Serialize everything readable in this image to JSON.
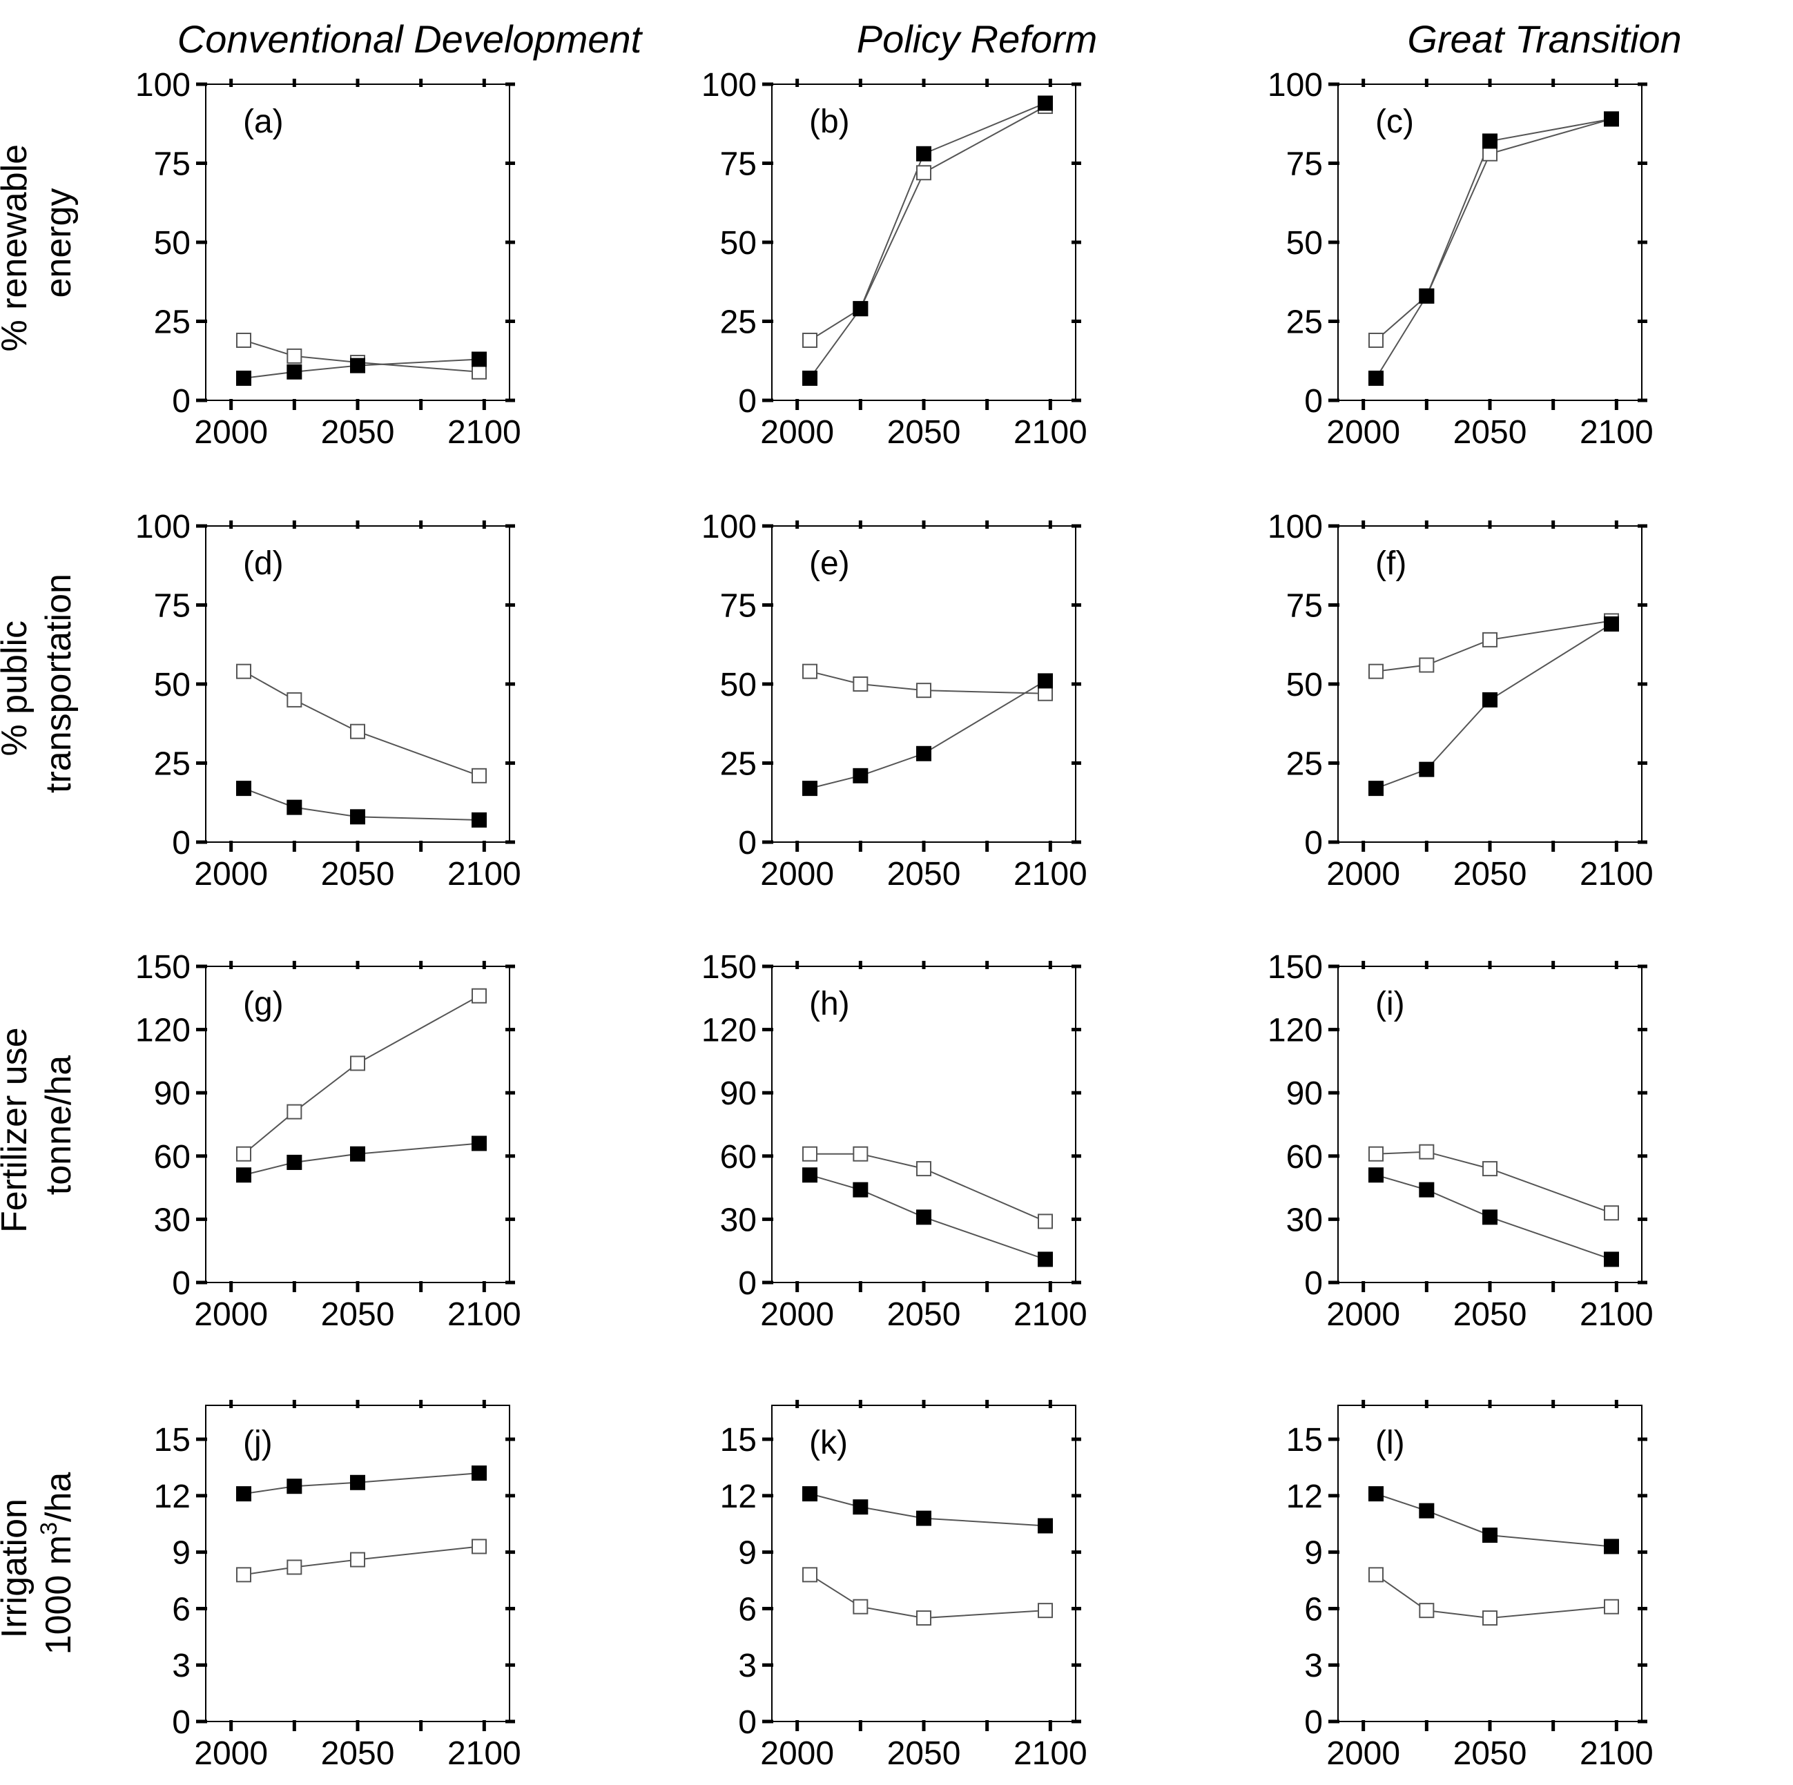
{
  "column_titles": [
    "Conventional Development",
    "Policy Reform",
    "Great Transition"
  ],
  "row_labels": [
    {
      "line1": "% renewable",
      "line2": "energy",
      "sup": ""
    },
    {
      "line1": "% public",
      "line2": "transportation",
      "sup": ""
    },
    {
      "line1": "Fertilizer use",
      "line2": "tonne/ha",
      "sup": ""
    },
    {
      "line1": "Irrigation",
      "line2_pre": "1000 m",
      "sup": "3",
      "line2_post": "/ha"
    }
  ],
  "colors": {
    "line": "#555555",
    "filled": "#000000",
    "open_fill": "#ffffff",
    "axis": "#000000"
  },
  "chart_data": [
    {
      "id": "a",
      "label": "(a)",
      "type": "line",
      "row": 0,
      "col": 0,
      "xlim": [
        1990,
        2110
      ],
      "xticks": [
        2000,
        2050,
        2100
      ],
      "ylim": [
        0,
        100
      ],
      "yticks": [
        0,
        25,
        50,
        75,
        100
      ],
      "series": [
        {
          "name": "filled",
          "x": [
            2005,
            2025,
            2050,
            2098
          ],
          "y": [
            7,
            9,
            11,
            13
          ]
        },
        {
          "name": "open",
          "x": [
            2005,
            2025,
            2050,
            2098
          ],
          "y": [
            19,
            14,
            12,
            9
          ]
        }
      ]
    },
    {
      "id": "b",
      "label": "(b)",
      "type": "line",
      "row": 0,
      "col": 1,
      "xlim": [
        1990,
        2110
      ],
      "xticks": [
        2000,
        2050,
        2100
      ],
      "ylim": [
        0,
        100
      ],
      "yticks": [
        0,
        25,
        50,
        75,
        100
      ],
      "series": [
        {
          "name": "filled",
          "x": [
            2005,
            2025,
            2050,
            2098
          ],
          "y": [
            7,
            29,
            78,
            94
          ]
        },
        {
          "name": "open",
          "x": [
            2005,
            2025,
            2050,
            2098
          ],
          "y": [
            19,
            29,
            72,
            93
          ]
        }
      ]
    },
    {
      "id": "c",
      "label": "(c)",
      "type": "line",
      "row": 0,
      "col": 2,
      "xlim": [
        1990,
        2110
      ],
      "xticks": [
        2000,
        2050,
        2100
      ],
      "ylim": [
        0,
        100
      ],
      "yticks": [
        0,
        25,
        50,
        75,
        100
      ],
      "series": [
        {
          "name": "filled",
          "x": [
            2005,
            2025,
            2050,
            2098
          ],
          "y": [
            7,
            33,
            82,
            89
          ]
        },
        {
          "name": "open",
          "x": [
            2005,
            2025,
            2050,
            2098
          ],
          "y": [
            19,
            33,
            78,
            89
          ]
        }
      ]
    },
    {
      "id": "d",
      "label": "(d)",
      "type": "line",
      "row": 1,
      "col": 0,
      "xlim": [
        1990,
        2110
      ],
      "xticks": [
        2000,
        2050,
        2100
      ],
      "ylim": [
        0,
        100
      ],
      "yticks": [
        0,
        25,
        50,
        75,
        100
      ],
      "series": [
        {
          "name": "filled",
          "x": [
            2005,
            2025,
            2050,
            2098
          ],
          "y": [
            17,
            11,
            8,
            7
          ]
        },
        {
          "name": "open",
          "x": [
            2005,
            2025,
            2050,
            2098
          ],
          "y": [
            54,
            45,
            35,
            21
          ]
        }
      ]
    },
    {
      "id": "e",
      "label": "(e)",
      "type": "line",
      "row": 1,
      "col": 1,
      "xlim": [
        1990,
        2110
      ],
      "xticks": [
        2000,
        2050,
        2100
      ],
      "ylim": [
        0,
        100
      ],
      "yticks": [
        0,
        25,
        50,
        75,
        100
      ],
      "series": [
        {
          "name": "filled",
          "x": [
            2005,
            2025,
            2050,
            2098
          ],
          "y": [
            17,
            21,
            28,
            51
          ]
        },
        {
          "name": "open",
          "x": [
            2005,
            2025,
            2050,
            2098
          ],
          "y": [
            54,
            50,
            48,
            47
          ]
        }
      ]
    },
    {
      "id": "f",
      "label": "(f)",
      "type": "line",
      "row": 1,
      "col": 2,
      "xlim": [
        1990,
        2110
      ],
      "xticks": [
        2000,
        2050,
        2100
      ],
      "ylim": [
        0,
        100
      ],
      "yticks": [
        0,
        25,
        50,
        75,
        100
      ],
      "series": [
        {
          "name": "filled",
          "x": [
            2005,
            2025,
            2050,
            2098
          ],
          "y": [
            17,
            23,
            45,
            69
          ]
        },
        {
          "name": "open",
          "x": [
            2005,
            2025,
            2050,
            2098
          ],
          "y": [
            54,
            56,
            64,
            70
          ]
        }
      ]
    },
    {
      "id": "g",
      "label": "(g)",
      "type": "line",
      "row": 2,
      "col": 0,
      "xlim": [
        1990,
        2110
      ],
      "xticks": [
        2000,
        2050,
        2100
      ],
      "ylim": [
        0,
        150
      ],
      "yticks": [
        0,
        30,
        60,
        90,
        120,
        150
      ],
      "series": [
        {
          "name": "filled",
          "x": [
            2005,
            2025,
            2050,
            2098
          ],
          "y": [
            51,
            57,
            61,
            66
          ]
        },
        {
          "name": "open",
          "x": [
            2005,
            2025,
            2050,
            2098
          ],
          "y": [
            61,
            81,
            104,
            136
          ]
        }
      ]
    },
    {
      "id": "h",
      "label": "(h)",
      "type": "line",
      "row": 2,
      "col": 1,
      "xlim": [
        1990,
        2110
      ],
      "xticks": [
        2000,
        2050,
        2100
      ],
      "ylim": [
        0,
        150
      ],
      "yticks": [
        0,
        30,
        60,
        90,
        120,
        150
      ],
      "series": [
        {
          "name": "filled",
          "x": [
            2005,
            2025,
            2050,
            2098
          ],
          "y": [
            51,
            44,
            31,
            11
          ]
        },
        {
          "name": "open",
          "x": [
            2005,
            2025,
            2050,
            2098
          ],
          "y": [
            61,
            61,
            54,
            29
          ]
        }
      ]
    },
    {
      "id": "i",
      "label": "(i)",
      "type": "line",
      "row": 2,
      "col": 2,
      "xlim": [
        1990,
        2110
      ],
      "xticks": [
        2000,
        2050,
        2100
      ],
      "ylim": [
        0,
        150
      ],
      "yticks": [
        0,
        30,
        60,
        90,
        120,
        150
      ],
      "series": [
        {
          "name": "filled",
          "x": [
            2005,
            2025,
            2050,
            2098
          ],
          "y": [
            51,
            44,
            31,
            11
          ]
        },
        {
          "name": "open",
          "x": [
            2005,
            2025,
            2050,
            2098
          ],
          "y": [
            61,
            62,
            54,
            33
          ]
        }
      ]
    },
    {
      "id": "j",
      "label": "(j)",
      "type": "line",
      "row": 3,
      "col": 0,
      "xlim": [
        1990,
        2110
      ],
      "xticks": [
        2000,
        2050,
        2100
      ],
      "ylim": [
        0,
        16.8
      ],
      "yticks": [
        0,
        3,
        6,
        9,
        12,
        15
      ],
      "series": [
        {
          "name": "filled",
          "x": [
            2005,
            2025,
            2050,
            2098
          ],
          "y": [
            12.1,
            12.5,
            12.7,
            13.2
          ]
        },
        {
          "name": "open",
          "x": [
            2005,
            2025,
            2050,
            2098
          ],
          "y": [
            7.8,
            8.2,
            8.6,
            9.3
          ]
        }
      ]
    },
    {
      "id": "k",
      "label": "(k)",
      "type": "line",
      "row": 3,
      "col": 1,
      "xlim": [
        1990,
        2110
      ],
      "xticks": [
        2000,
        2050,
        2100
      ],
      "ylim": [
        0,
        16.8
      ],
      "yticks": [
        0,
        3,
        6,
        9,
        12,
        15
      ],
      "series": [
        {
          "name": "filled",
          "x": [
            2005,
            2025,
            2050,
            2098
          ],
          "y": [
            12.1,
            11.4,
            10.8,
            10.4
          ]
        },
        {
          "name": "open",
          "x": [
            2005,
            2025,
            2050,
            2098
          ],
          "y": [
            7.8,
            6.1,
            5.5,
            5.9
          ]
        }
      ]
    },
    {
      "id": "l",
      "label": "(l)",
      "type": "line",
      "row": 3,
      "col": 2,
      "xlim": [
        1990,
        2110
      ],
      "xticks": [
        2000,
        2050,
        2100
      ],
      "ylim": [
        0,
        16.8
      ],
      "yticks": [
        0,
        3,
        6,
        9,
        12,
        15
      ],
      "series": [
        {
          "name": "filled",
          "x": [
            2005,
            2025,
            2050,
            2098
          ],
          "y": [
            12.1,
            11.2,
            9.9,
            9.3
          ]
        },
        {
          "name": "open",
          "x": [
            2005,
            2025,
            2050,
            2098
          ],
          "y": [
            7.8,
            5.9,
            5.5,
            6.1
          ]
        }
      ]
    }
  ]
}
